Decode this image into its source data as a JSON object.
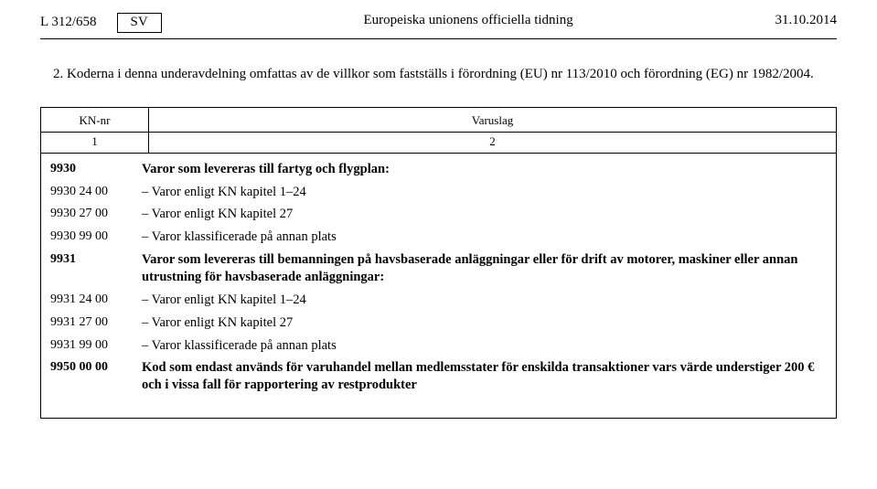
{
  "header": {
    "page_ref": "L 312/658",
    "lang_box": "SV",
    "journal_title": "Europeiska unionens officiella tidning",
    "date": "31.10.2014"
  },
  "intro": "2.  Koderna i denna underavdelning omfattas av de villkor som fastställs i förordning (EU) nr 113/2010 och förordning (EG) nr 1982/2004.",
  "table": {
    "head_kn": "KN-nr",
    "head_var": "Varuslag",
    "num_kn": "1",
    "num_var": "2",
    "rows": [
      {
        "kn": "9930",
        "desc": "Varor som levereras till fartyg och flygplan:",
        "bold": true,
        "dash": false
      },
      {
        "kn": "9930 24 00",
        "desc": "Varor enligt KN kapitel 1–24",
        "bold": false,
        "dash": true
      },
      {
        "kn": "9930 27 00",
        "desc": "Varor enligt KN kapitel 27",
        "bold": false,
        "dash": true
      },
      {
        "kn": "9930 99 00",
        "desc": "Varor klassificerade på annan plats",
        "bold": false,
        "dash": true
      },
      {
        "kn": "9931",
        "desc": "Varor som levereras till bemanningen på havsbaserade anläggningar eller för drift av motorer, maskiner eller annan utrustning för havsbaserade anläggningar:",
        "bold": true,
        "dash": false
      },
      {
        "kn": "9931 24 00",
        "desc": "Varor enligt KN kapitel 1–24",
        "bold": false,
        "dash": true
      },
      {
        "kn": "9931 27 00",
        "desc": "Varor enligt KN kapitel 27",
        "bold": false,
        "dash": true
      },
      {
        "kn": "9931 99 00",
        "desc": "Varor klassificerade på annan plats",
        "bold": false,
        "dash": true
      },
      {
        "kn": "9950 00 00",
        "desc": "Kod som endast används för varuhandel mellan medlemsstater för enskilda transaktioner vars värde understiger 200 € och i vissa fall för rapportering av restprodukter",
        "bold": true,
        "dash": false
      }
    ]
  }
}
